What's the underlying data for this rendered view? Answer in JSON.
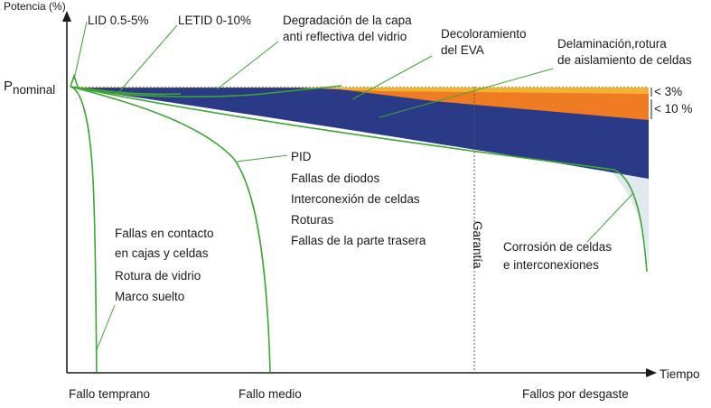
{
  "axes": {
    "y_label": "Potencia (%)",
    "x_label": "Tiempo",
    "p_nominal": {
      "main": "P",
      "sub": "nominal"
    }
  },
  "top_labels": {
    "lid": "LID 0.5-5%",
    "letid": "LETID 0-10%",
    "degradacion": [
      "Degradación de la capa",
      "anti reflectiva del vidrio"
    ],
    "decoloramiento": [
      "Decoloramiento",
      "del EVA"
    ],
    "delaminacion": [
      "Delaminación,rotura",
      "de aislamiento de celdas"
    ]
  },
  "brackets": {
    "b3": "< 3%",
    "b10": "< 10 %"
  },
  "mid_list": [
    "PID",
    "Fallas de diodos",
    "Interconexión de celdas",
    "Roturas",
    "Fallas de la parte trasera"
  ],
  "early_list": [
    "Fallas en contacto",
    "en cajas y celdas",
    "Rotura de vidrio",
    "Marco suelto"
  ],
  "garantia": "Garantía",
  "corrosion": [
    "Corrosión de celdas",
    "e interconexiones"
  ],
  "x_categories": {
    "early": "Fallo temprano",
    "mid": "Fallo medio",
    "wear": "Fallos por desgaste"
  },
  "colors": {
    "navy": "#2b3a86",
    "orange": "#ef7b22",
    "yellow": "#f2b233",
    "green": "#3fa535",
    "lightblue": "#dfe9ef",
    "axis": "#1a1a1a"
  }
}
